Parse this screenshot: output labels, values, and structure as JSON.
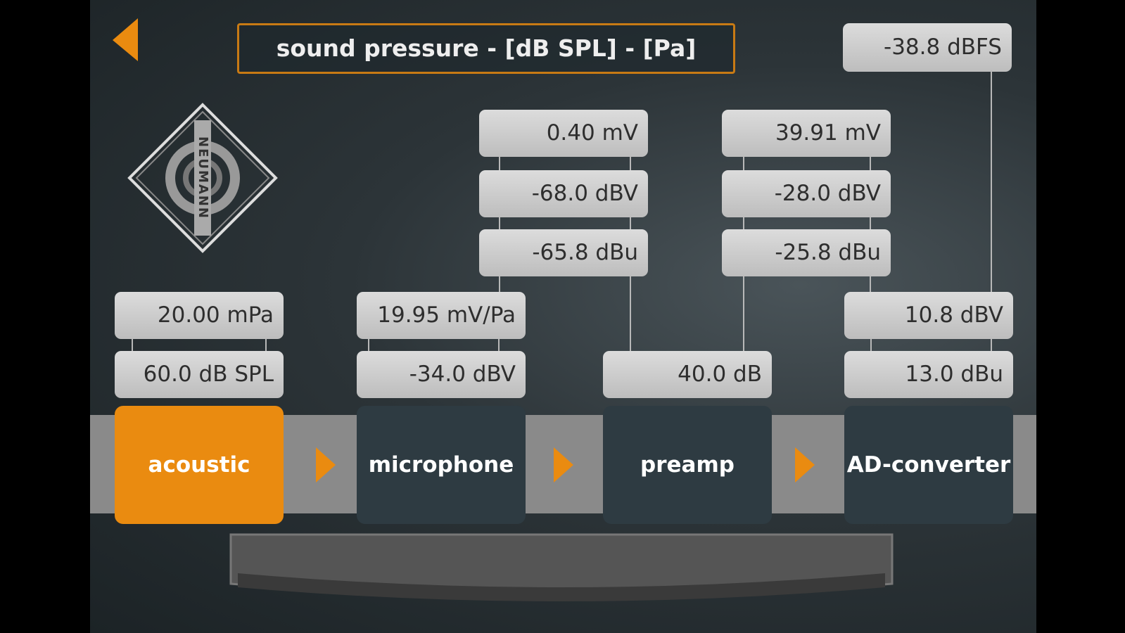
{
  "header": {
    "title": "sound pressure - [dB SPL] - [Pa]",
    "dbfs": "-38.8 dBFS"
  },
  "logo": {
    "text": "NEUMANN"
  },
  "stages": [
    {
      "label": "acoustic",
      "values": [
        "20.00 mPa",
        "60.0 dB SPL"
      ]
    },
    {
      "label": "microphone",
      "values": [
        "19.95 mV/Pa",
        "-34.0 dBV"
      ]
    },
    {
      "label": "preamp",
      "values": [
        "40.0 dB"
      ]
    },
    {
      "label": "AD-converter",
      "values": [
        "10.8 dBV",
        "13.0 dBu"
      ]
    }
  ],
  "outputs": [
    {
      "values": [
        "0.40 mV",
        "-68.0 dBV",
        "-65.8 dBu"
      ]
    },
    {
      "values": [
        "39.91 mV",
        "-28.0 dBV",
        "-25.8 dBu"
      ]
    }
  ]
}
